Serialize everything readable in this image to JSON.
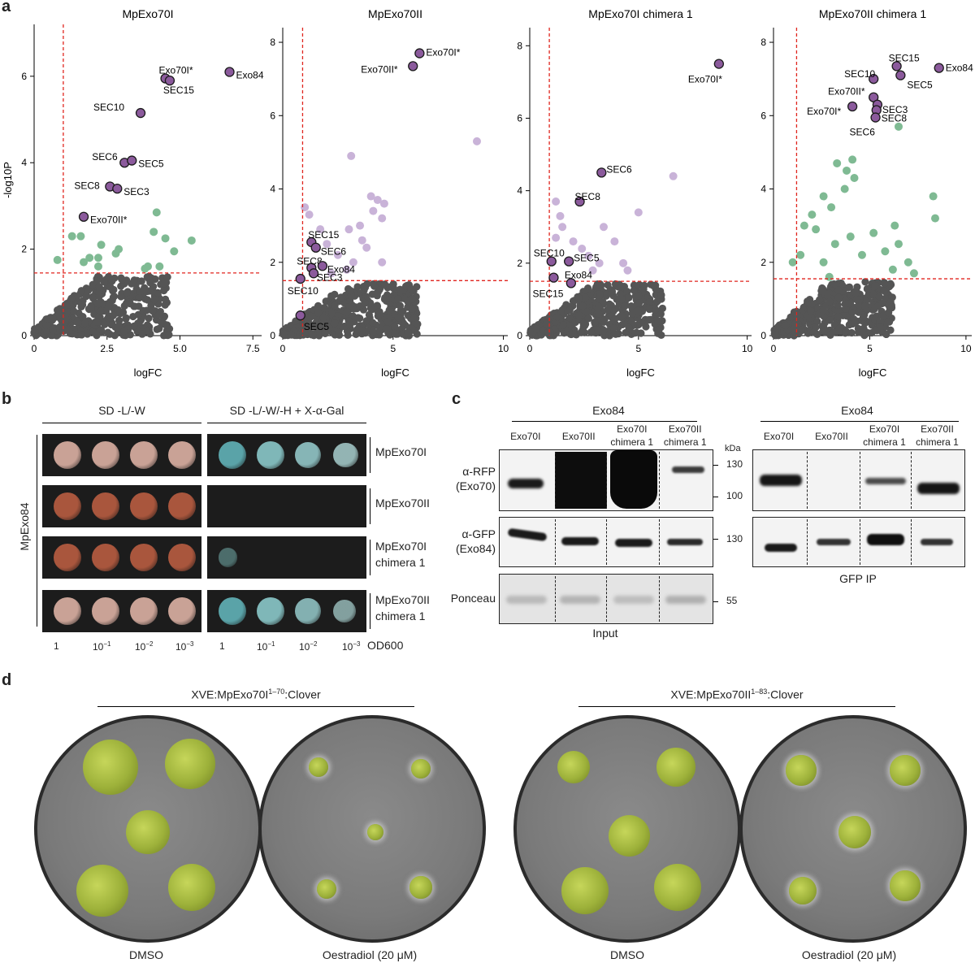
{
  "panels": {
    "a": "a",
    "b": "b",
    "c": "c",
    "d": "d"
  },
  "chart_data": [
    {
      "type": "scatter",
      "title": "MpExo70I",
      "xlabel": "logFC",
      "ylabel": "-log10P",
      "xlim": [
        0,
        7.8
      ],
      "ylim": [
        0,
        7.2
      ],
      "xticks": [
        "0",
        "2.5",
        "5.0",
        "7.5"
      ],
      "xtick_values": [
        0,
        2.5,
        5.0,
        7.5
      ],
      "yticks": [
        "0",
        "2",
        "4",
        "6"
      ],
      "ytick_values": [
        0,
        2,
        4,
        6
      ],
      "thresholds": {
        "x": 1.0,
        "y": 1.45
      },
      "labeled_points": [
        {
          "label": "Exo84",
          "x": 6.7,
          "y": 6.1
        },
        {
          "label": "Exo70I*",
          "x": 4.5,
          "y": 5.95
        },
        {
          "label": "SEC15",
          "x": 4.65,
          "y": 5.9
        },
        {
          "label": "SEC10",
          "x": 3.65,
          "y": 5.15
        },
        {
          "label": "SEC6",
          "x": 3.1,
          "y": 4.0
        },
        {
          "label": "SEC5",
          "x": 3.35,
          "y": 4.05
        },
        {
          "label": "SEC8",
          "x": 2.6,
          "y": 3.45
        },
        {
          "label": "SEC3",
          "x": 2.85,
          "y": 3.4
        },
        {
          "label": "Exo70II*",
          "x": 1.7,
          "y": 2.75
        }
      ],
      "significant_points": [
        [
          1.3,
          2.3
        ],
        [
          1.6,
          2.3
        ],
        [
          1.7,
          1.7
        ],
        [
          1.9,
          1.8
        ],
        [
          2.2,
          1.8
        ],
        [
          2.3,
          2.1
        ],
        [
          2.2,
          1.6
        ],
        [
          2.8,
          1.9
        ],
        [
          2.9,
          2.0
        ],
        [
          4.1,
          2.4
        ],
        [
          4.2,
          2.85
        ],
        [
          4.5,
          2.25
        ],
        [
          4.8,
          1.95
        ],
        [
          5.4,
          2.2
        ],
        [
          3.8,
          1.55
        ],
        [
          3.9,
          1.6
        ],
        [
          4.3,
          1.6
        ],
        [
          0.8,
          1.75
        ]
      ],
      "background_points": "dense grey cloud below threshold"
    },
    {
      "type": "scatter",
      "title": "MpExo70II",
      "xlabel": "logFC",
      "xlim": [
        0,
        10.2
      ],
      "ylim": [
        0,
        8.4
      ],
      "xticks": [
        "0",
        "5",
        "10"
      ],
      "xtick_values": [
        0,
        5,
        10
      ],
      "yticks": [
        "0",
        "2",
        "4",
        "6",
        "8"
      ],
      "ytick_values": [
        0,
        2,
        4,
        6,
        8
      ],
      "thresholds": {
        "x": 0.9,
        "y": 1.5
      },
      "labeled_points": [
        {
          "label": "Exo70I*",
          "x": 6.2,
          "y": 7.7
        },
        {
          "label": "Exo70II*",
          "x": 5.9,
          "y": 7.35
        },
        {
          "label": "SEC15",
          "x": 1.3,
          "y": 2.55
        },
        {
          "label": "SEC6",
          "x": 1.5,
          "y": 2.4
        },
        {
          "label": "SEC8",
          "x": 1.3,
          "y": 1.85
        },
        {
          "label": "Exo84",
          "x": 1.8,
          "y": 1.9
        },
        {
          "label": "SEC3",
          "x": 1.4,
          "y": 1.7
        },
        {
          "label": "SEC10",
          "x": 0.8,
          "y": 1.55
        },
        {
          "label": "SEC5",
          "x": 0.8,
          "y": 0.55
        }
      ],
      "significant_points": [
        [
          8.8,
          5.3
        ],
        [
          3.1,
          4.9
        ],
        [
          4.0,
          3.8
        ],
        [
          4.1,
          3.4
        ],
        [
          4.3,
          3.7
        ],
        [
          4.6,
          3.6
        ],
        [
          4.5,
          3.2
        ],
        [
          3.5,
          3.0
        ],
        [
          3.0,
          2.9
        ],
        [
          3.6,
          2.6
        ],
        [
          2.5,
          2.2
        ],
        [
          2.0,
          2.5
        ],
        [
          1.7,
          2.9
        ],
        [
          1.2,
          3.3
        ],
        [
          1.0,
          3.5
        ],
        [
          3.8,
          2.4
        ],
        [
          3.2,
          2.0
        ],
        [
          2.9,
          1.8
        ],
        [
          2.2,
          1.7
        ],
        [
          4.5,
          2.0
        ]
      ],
      "background_points": "dense grey cloud below threshold"
    },
    {
      "type": "scatter",
      "title": "MpExo70I chimera 1",
      "xlabel": "logFC",
      "xlim": [
        0,
        10.2
      ],
      "ylim": [
        0,
        8.5
      ],
      "xticks": [
        "0",
        "5",
        "10"
      ],
      "xtick_values": [
        0,
        5,
        10
      ],
      "yticks": [
        "0",
        "2",
        "4",
        "6",
        "8"
      ],
      "ytick_values": [
        0,
        2,
        4,
        6,
        8
      ],
      "thresholds": {
        "x": 0.9,
        "y": 1.5
      },
      "labeled_points": [
        {
          "label": "Exo70I*",
          "x": 8.7,
          "y": 7.5
        },
        {
          "label": "SEC6",
          "x": 3.3,
          "y": 4.5
        },
        {
          "label": "SEC8",
          "x": 2.3,
          "y": 3.7
        },
        {
          "label": "SEC10",
          "x": 1.0,
          "y": 2.05
        },
        {
          "label": "SEC5",
          "x": 1.8,
          "y": 2.05
        },
        {
          "label": "Exo84",
          "x": 1.9,
          "y": 1.45
        },
        {
          "label": "SEC15",
          "x": 1.1,
          "y": 1.6
        }
      ],
      "significant_points": [
        [
          6.6,
          4.4
        ],
        [
          5.0,
          3.4
        ],
        [
          3.4,
          3.0
        ],
        [
          3.9,
          2.6
        ],
        [
          1.2,
          3.7
        ],
        [
          1.4,
          3.3
        ],
        [
          1.5,
          3.0
        ],
        [
          1.2,
          2.7
        ],
        [
          2.0,
          2.6
        ],
        [
          2.4,
          2.4
        ],
        [
          2.7,
          2.2
        ],
        [
          3.2,
          2.0
        ],
        [
          4.3,
          2.0
        ],
        [
          2.9,
          1.8
        ],
        [
          4.5,
          1.8
        ]
      ],
      "background_points": "dense grey cloud below threshold"
    },
    {
      "type": "scatter",
      "title": "MpExo70II chimera 1",
      "xlabel": "logFC",
      "xlim": [
        0,
        10.3
      ],
      "ylim": [
        0,
        8.4
      ],
      "xticks": [
        "0",
        "5",
        "10"
      ],
      "xtick_values": [
        0,
        5,
        10
      ],
      "yticks": [
        "0",
        "2",
        "4",
        "6",
        "8"
      ],
      "ytick_values": [
        0,
        2,
        4,
        6,
        8
      ],
      "thresholds": {
        "x": 1.2,
        "y": 1.55
      },
      "labeled_points": [
        {
          "label": "SEC15",
          "x": 6.4,
          "y": 7.35
        },
        {
          "label": "Exo84",
          "x": 8.6,
          "y": 7.3
        },
        {
          "label": "SEC10",
          "x": 5.2,
          "y": 7.0
        },
        {
          "label": "SEC5",
          "x": 6.6,
          "y": 7.1
        },
        {
          "label": "Exo70II*",
          "x": 5.2,
          "y": 6.5
        },
        {
          "label": "SEC3",
          "x": 5.4,
          "y": 6.3
        },
        {
          "label": "Exo70I*",
          "x": 4.1,
          "y": 6.25
        },
        {
          "label": "SEC8",
          "x": 5.35,
          "y": 6.15
        },
        {
          "label": "SEC6",
          "x": 5.3,
          "y": 5.95
        }
      ],
      "significant_points": [
        [
          6.5,
          5.7
        ],
        [
          4.1,
          4.8
        ],
        [
          3.3,
          4.7
        ],
        [
          3.8,
          4.5
        ],
        [
          4.2,
          4.3
        ],
        [
          3.7,
          4.0
        ],
        [
          2.6,
          3.8
        ],
        [
          3.0,
          3.5
        ],
        [
          8.3,
          3.8
        ],
        [
          8.4,
          3.2
        ],
        [
          2.0,
          3.3
        ],
        [
          1.6,
          3.0
        ],
        [
          2.2,
          2.9
        ],
        [
          3.2,
          2.5
        ],
        [
          4.0,
          2.7
        ],
        [
          5.2,
          2.8
        ],
        [
          5.8,
          2.3
        ],
        [
          6.3,
          3.0
        ],
        [
          6.5,
          2.5
        ],
        [
          7.0,
          2.0
        ],
        [
          6.2,
          1.8
        ],
        [
          4.6,
          2.2
        ],
        [
          2.6,
          2.0
        ],
        [
          1.4,
          2.2
        ],
        [
          1.0,
          2.0
        ],
        [
          7.3,
          1.7
        ],
        [
          2.9,
          1.6
        ]
      ],
      "background_points": "dense grey cloud below threshold"
    }
  ],
  "colors": {
    "labeled": "#8b5a9c",
    "sig_green": "#7fba93",
    "sig_lilac": "#c9b3d8",
    "background": "#555555",
    "threshold": "#e0251e"
  },
  "panel_b": {
    "header_left": "SD -L/-W",
    "header_right": "SD -L/-W/-H + X-α-Gal",
    "side_label": "MpExo84",
    "rows": [
      {
        "label_line1": "MpExo70I",
        "label_line2": ""
      },
      {
        "label_line1": "MpExo70II",
        "label_line2": ""
      },
      {
        "label_line1": "MpExo70I",
        "label_line2": "chimera 1"
      },
      {
        "label_line1": "MpExo70II",
        "label_line2": "chimera 1"
      }
    ],
    "dilutions": [
      "1",
      "10",
      "10",
      "10"
    ],
    "dilution_exponents": [
      "",
      "−1",
      "−2",
      "−3"
    ],
    "od_label": "OD600"
  },
  "panel_c": {
    "group_label": "Exo84",
    "lanes": [
      "Exo70I",
      "Exo70II",
      "Exo70I",
      "Exo70II"
    ],
    "lanes_sub": [
      "",
      "",
      "chimera 1",
      "chimera 1"
    ],
    "kda": "kDa",
    "rows": [
      {
        "line1": "α-RFP",
        "line2": "(Exo70)"
      },
      {
        "line1": "α-GFP",
        "line2": "(Exo84)"
      },
      {
        "line1": "Ponceau",
        "line2": ""
      }
    ],
    "markers": [
      "130",
      "100",
      "130",
      "55"
    ],
    "input_label": "Input",
    "ip_label": "GFP IP"
  },
  "panel_d": {
    "left_header": "XVE:MpExo70I",
    "left_sup": "1–70",
    "left_suffix": ":Clover",
    "right_header": "XVE:MpExo70II",
    "right_sup": "1–83",
    "right_suffix": ":Clover",
    "labels": [
      "DMSO",
      "Oestradiol (20 μM)",
      "DMSO",
      "Oestradiol (20 μM)"
    ]
  }
}
